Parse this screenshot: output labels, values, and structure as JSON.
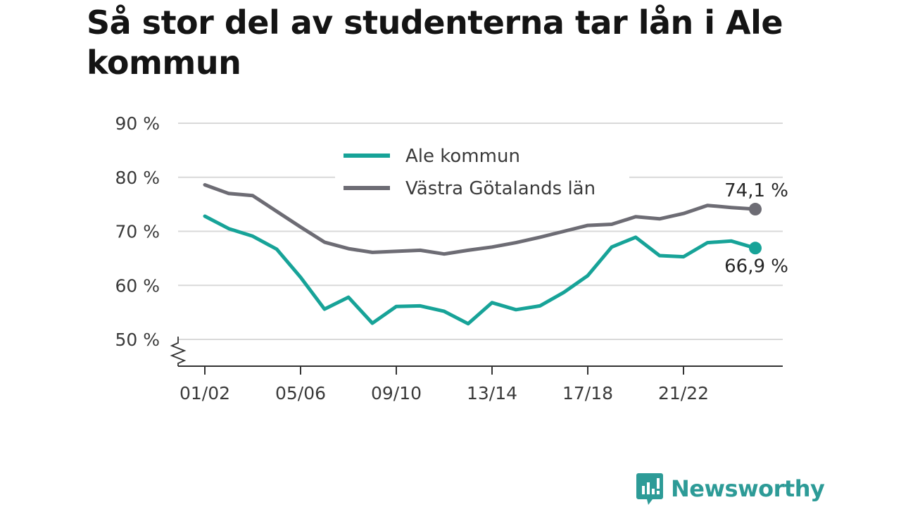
{
  "title": "Så stor del av studenterna tar lån i Ale kommun",
  "brand": {
    "name": "Newsworthy",
    "color": "#2d9b97",
    "icon": "newsworthy-chart-bubble-icon"
  },
  "chart_data": {
    "type": "line",
    "title": "Så stor del av studenterna tar lån i Ale kommun",
    "xlabel": "",
    "ylabel": "",
    "ylim": [
      45,
      90
    ],
    "y_ticks": [
      50,
      60,
      70,
      80,
      90
    ],
    "y_tick_labels": [
      "50 %",
      "60 %",
      "70 %",
      "80 %",
      "90 %"
    ],
    "y_axis_break": true,
    "grid": "horizontal",
    "legend_position": "top-center",
    "x": [
      "01/02",
      "02/03",
      "03/04",
      "04/05",
      "05/06",
      "06/07",
      "07/08",
      "08/09",
      "09/10",
      "10/11",
      "11/12",
      "12/13",
      "13/14",
      "14/15",
      "15/16",
      "16/17",
      "17/18",
      "18/19",
      "19/20",
      "20/21",
      "21/22",
      "22/23",
      "23/24",
      "24/25"
    ],
    "x_tick_labels": [
      "01/02",
      "05/06",
      "09/10",
      "13/14",
      "17/18",
      "21/22"
    ],
    "series": [
      {
        "name": "Ale kommun",
        "color": "#17a398",
        "values": [
          72.8,
          70.5,
          69.1,
          66.7,
          61.5,
          55.6,
          57.8,
          53.0,
          56.1,
          56.2,
          55.2,
          52.9,
          56.8,
          55.5,
          56.2,
          58.7,
          61.8,
          67.1,
          68.9,
          65.5,
          65.3,
          67.9,
          68.2,
          66.9
        ],
        "end_label": "66,9 %"
      },
      {
        "name": "Västra Götalands län",
        "color": "#6d6c74",
        "values": [
          78.6,
          77.0,
          76.6,
          73.7,
          70.8,
          68.0,
          66.8,
          66.1,
          66.3,
          66.5,
          65.8,
          66.5,
          67.1,
          67.9,
          68.9,
          70.0,
          71.1,
          71.3,
          72.7,
          72.3,
          73.3,
          74.8,
          74.4,
          74.1
        ],
        "end_label": "74,1 %"
      }
    ]
  }
}
